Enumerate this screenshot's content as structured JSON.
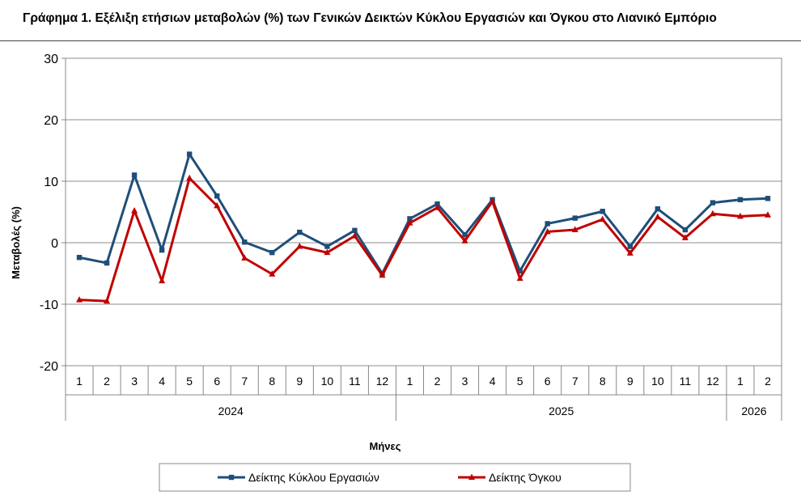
{
  "chart_data": {
    "type": "line",
    "title": "Γράφημα 1. Εξέλιξη ετήσιων μεταβολών (%) των Γενικών Δεικτών Κύκλου Εργασιών και Όγκου στο Λιανικό Εμπόριο",
    "xlabel": "Μήνες",
    "ylabel": "Μεταβολές  (%)",
    "ylim": [
      -20,
      30
    ],
    "yticks": [
      "-20",
      "-10",
      "0",
      "10",
      "20",
      "30"
    ],
    "grid": true,
    "legend_position": "bottom",
    "categories": [
      "1",
      "2",
      "3",
      "4",
      "5",
      "6",
      "7",
      "8",
      "9",
      "10",
      "11",
      "12",
      "1",
      "2",
      "3",
      "4",
      "5",
      "6",
      "7",
      "8",
      "9",
      "10",
      "11",
      "12",
      "1",
      "2"
    ],
    "year_groups": [
      {
        "label": "2024",
        "count": 12
      },
      {
        "label": "2025",
        "count": 12
      },
      {
        "label": "2026",
        "count": 2
      }
    ],
    "series": [
      {
        "name": "Δείκτης Κύκλου Εργασιών",
        "color": "#1f4e79",
        "marker": "square",
        "values": [
          -2.4,
          -3.3,
          11.0,
          -1.2,
          14.4,
          7.6,
          0.1,
          -1.6,
          1.7,
          -0.6,
          2.0,
          -5.0,
          3.9,
          6.3,
          1.3,
          7.0,
          -4.6,
          3.1,
          4.0,
          5.1,
          -0.6,
          5.5,
          2.1,
          6.5,
          7.0,
          7.2
        ]
      },
      {
        "name": "Δείκτης Όγκου",
        "color": "#c00000",
        "marker": "triangle",
        "values": [
          -9.3,
          -9.5,
          5.2,
          -6.2,
          10.5,
          6.0,
          -2.5,
          -5.1,
          -0.6,
          -1.6,
          1.1,
          -5.3,
          3.2,
          5.7,
          0.3,
          6.7,
          -5.8,
          1.8,
          2.1,
          3.8,
          -1.7,
          4.2,
          0.8,
          4.7,
          4.3,
          4.5
        ]
      }
    ]
  }
}
